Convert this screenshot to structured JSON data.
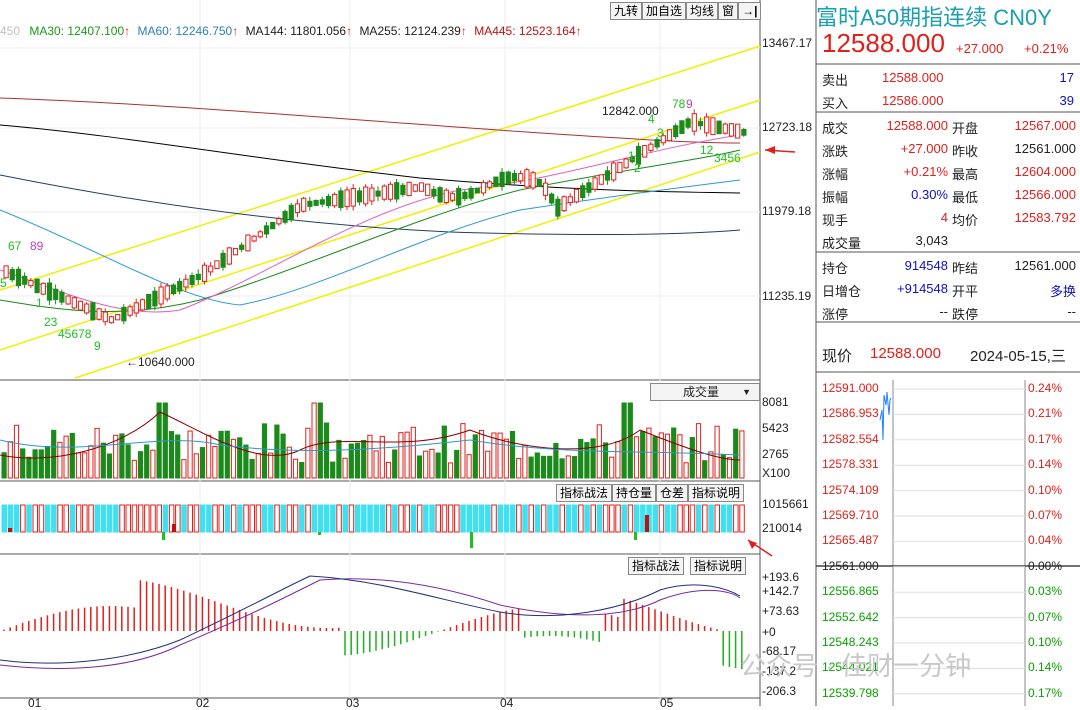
{
  "toolbar": {
    "buttons": [
      "九转",
      "加自选",
      "均线",
      "窗"
    ],
    "arrow_icon": "arrow-right-bar-icon"
  },
  "ma_legend": [
    {
      "label": "450",
      "color": "#d0d0d0"
    },
    {
      "label": "MA30: 12407.100",
      "color": "#1a9a1a"
    },
    {
      "label": "MA60: 12246.750",
      "color": "#2a7fbf"
    },
    {
      "label": "MA144: 11801.056",
      "color": "#000000"
    },
    {
      "label": "MA255: 12124.239",
      "color": "#000000"
    },
    {
      "label": "MA445: 12523.164",
      "color": "#c01010"
    }
  ],
  "price_axis": [
    "13467.17",
    "12723.18",
    "11979.18",
    "11235.19"
  ],
  "price_annotations": {
    "high": "12842.000",
    "low": "10640.000"
  },
  "nine_turn_labels": [
    "67",
    "89",
    "5",
    "1",
    "23",
    "45678",
    "9",
    "2",
    "3",
    "4",
    "1",
    "12",
    "3456",
    "78",
    "9"
  ],
  "volume_panel": {
    "dropdown": "成交量",
    "axis": [
      "8081",
      "5423",
      "2765",
      "X100"
    ]
  },
  "position_panel": {
    "buttons": [
      "指标战法",
      "持仓量",
      "仓差",
      "指标说明"
    ],
    "axis": [
      "1015661",
      "210014"
    ]
  },
  "macd_panel": {
    "buttons": [
      "指标战法",
      "指标说明"
    ],
    "axis": [
      "+193.6",
      "+142.7",
      "+73.63",
      "+0",
      "-68.17",
      "-137.2",
      "-206.3"
    ]
  },
  "months": [
    "01",
    "02",
    "03",
    "04",
    "05"
  ],
  "quote": {
    "title": "富时A50期指连续 CN0Y",
    "price": "12588.000",
    "change": "+27.000",
    "change_pct": "+0.21%",
    "sell_label": "卖出",
    "sell_price": "12588.000",
    "sell_qty": "17",
    "buy_label": "买入",
    "buy_price": "12586.000",
    "buy_qty": "39",
    "rows": [
      {
        "l1": "成交",
        "v1": "12588.000",
        "l2": "开盘",
        "v2": "12567.000",
        "c1": "red",
        "c2": "red"
      },
      {
        "l1": "涨跌",
        "v1": "+27.000",
        "l2": "昨收",
        "v2": "12561.000",
        "c1": "red",
        "c2": "black"
      },
      {
        "l1": "涨幅",
        "v1": "+0.21%",
        "l2": "最高",
        "v2": "12604.000",
        "c1": "red",
        "c2": "red"
      },
      {
        "l1": "振幅",
        "v1": "0.30%",
        "l2": "最低",
        "v2": "12566.000",
        "c1": "blue",
        "c2": "red"
      },
      {
        "l1": "现手",
        "v1": "4",
        "l2": "均价",
        "v2": "12583.792",
        "c1": "red",
        "c2": "red"
      },
      {
        "l1": "成交量",
        "v1": "3,043",
        "l2": "",
        "v2": "",
        "c1": "black",
        "c2": "black"
      }
    ],
    "rows2": [
      {
        "l1": "持仓",
        "v1": "914548",
        "l2": "昨结",
        "v2": "12561.000",
        "c1": "blue",
        "c2": "black"
      },
      {
        "l1": "日增仓",
        "v1": "+914548",
        "l2": "开平",
        "v2": "多换",
        "c1": "blue",
        "c2": "blue"
      },
      {
        "l1": "涨停",
        "v1": "--",
        "l2": "跌停",
        "v2": "--",
        "c1": "black",
        "c2": "black"
      }
    ],
    "now_label": "现价",
    "now_price": "12588.000",
    "date": "2024-05-15,三"
  },
  "intraday": {
    "left_axis": [
      "12591.000",
      "12586.953",
      "12582.554",
      "12578.331",
      "12574.109",
      "12569.710",
      "12565.487",
      "12561.000",
      "12556.865",
      "12552.642",
      "12548.243",
      "12544.021",
      "12539.798"
    ],
    "right_axis": [
      "0.24%",
      "0.21%",
      "0.17%",
      "0.14%",
      "0.10%",
      "0.07%",
      "0.04%",
      "0.00%",
      "0.03%",
      "0.07%",
      "0.10%",
      "0.14%",
      "0.17%"
    ]
  },
  "watermark": "公众号 · 佳财一分钟",
  "colors": {
    "up": "#e0201c",
    "down": "#1a8a1a",
    "cyan": "#40e0f0",
    "channel": "#f0f000"
  }
}
